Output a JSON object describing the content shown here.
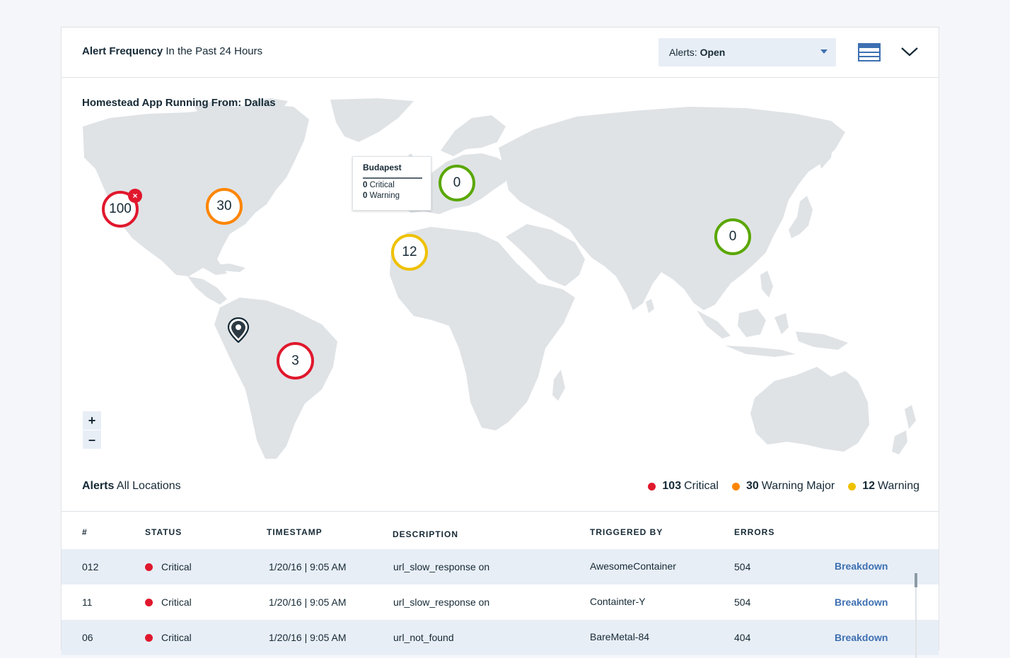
{
  "header": {
    "title_strong": "Alert Frequency",
    "title_rest": "In the Past 24 Hours",
    "dropdown_label": "Alerts:",
    "dropdown_value": "Open",
    "list_view_icon": "list-view-icon",
    "collapse_icon": "chevron-down-icon"
  },
  "map": {
    "title": "Homestead App Running From: Dallas",
    "markers": [
      {
        "value": "100",
        "status": "critical"
      },
      {
        "value": "30",
        "status": "warning-major"
      },
      {
        "value": "3",
        "status": "critical"
      },
      {
        "value": "12",
        "status": "warning"
      },
      {
        "value": "0",
        "status": "ok"
      },
      {
        "value": "0",
        "status": "ok"
      }
    ],
    "close_symbol": "×",
    "tooltip": {
      "title": "Budapest",
      "critical_count": "0",
      "critical_label": "Critical",
      "warning_count": "0",
      "warning_label": "Warning"
    },
    "zoom_in": "+",
    "zoom_out": "–"
  },
  "alerts": {
    "title_strong": "Alerts",
    "title_rest": "All Locations",
    "legend": [
      {
        "count": "103",
        "label": "Critical",
        "color": "#e0182d"
      },
      {
        "count": "30",
        "label": "Warning Major",
        "color": "#fe8500"
      },
      {
        "count": "12",
        "label": "Warning",
        "color": "#efc100"
      }
    ]
  },
  "table": {
    "headers": [
      "#",
      "STATUS",
      "TIMESTAMP",
      "DESCRIPTION",
      "TRIGGERED BY",
      "ERRORS"
    ],
    "rows": [
      {
        "id": "012",
        "status": "Critical",
        "timestamp": "1/20/16 | 9:05 AM",
        "description": "url_slow_response on",
        "triggered_by": "AwesomeContainer",
        "errors": "504",
        "action": "Breakdown"
      },
      {
        "id": "11",
        "status": "Critical",
        "timestamp": "1/20/16 | 9:05 AM",
        "description": "url_slow_response on",
        "triggered_by": "Containter-Y",
        "errors": "504",
        "action": "Breakdown"
      },
      {
        "id": "06",
        "status": "Critical",
        "timestamp": "1/20/16 | 9:05 AM",
        "description": "url_not_found",
        "triggered_by": "BareMetal-84",
        "errors": "404",
        "action": "Breakdown"
      }
    ]
  },
  "colors": {
    "critical": "#e0182d",
    "warning_major": "#fe8500",
    "warning": "#efc100",
    "ok": "#5aa700",
    "accent": "#3d70b2",
    "land": "#dfe3e6"
  }
}
